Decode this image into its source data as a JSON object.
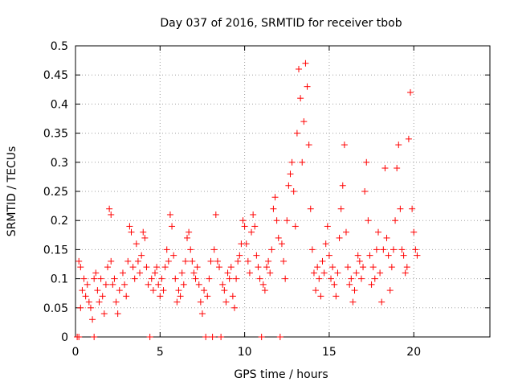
{
  "chart_data": {
    "type": "scatter",
    "title": "Day 037 of 2016, SRMTID for receiver tbob",
    "xlabel": "GPS time / hours",
    "ylabel": "SRMTID / TECUs",
    "xlim": [
      0,
      24.5
    ],
    "ylim": [
      0,
      0.5
    ],
    "x_ticks": [
      0,
      5,
      10,
      15,
      20
    ],
    "y_ticks": [
      0,
      0.05,
      0.1,
      0.15,
      0.2,
      0.25,
      0.3,
      0.35,
      0.4,
      0.45,
      0.5
    ],
    "x_tick_labels": [
      "0",
      "5",
      "10",
      "15",
      "20"
    ],
    "y_tick_labels": [
      "0",
      "0.05",
      "0.1",
      "0.15",
      "0.2",
      "0.25",
      "0.3",
      "0.35",
      "0.4",
      "0.45",
      "0.5"
    ],
    "grid": true,
    "marker": "+",
    "color": "#ff0000",
    "series": [
      {
        "name": "SRMTID",
        "points": [
          [
            0.1,
            0
          ],
          [
            0.2,
            0
          ],
          [
            0.2,
            0.13
          ],
          [
            0.3,
            0.12
          ],
          [
            0.3,
            0.05
          ],
          [
            0.4,
            0.08
          ],
          [
            0.5,
            0.1
          ],
          [
            0.6,
            0.07
          ],
          [
            0.7,
            0.09
          ],
          [
            0.8,
            0.06
          ],
          [
            0.9,
            0.05
          ],
          [
            1.0,
            0.03
          ],
          [
            1.1,
            0
          ],
          [
            1.1,
            0.1
          ],
          [
            1.2,
            0.11
          ],
          [
            1.3,
            0.08
          ],
          [
            1.4,
            0.06
          ],
          [
            1.5,
            0.1
          ],
          [
            1.6,
            0.07
          ],
          [
            1.7,
            0.04
          ],
          [
            1.8,
            0.09
          ],
          [
            1.9,
            0.12
          ],
          [
            2.0,
            0.22
          ],
          [
            2.1,
            0.21
          ],
          [
            2.1,
            0.13
          ],
          [
            2.2,
            0.09
          ],
          [
            2.3,
            0.1
          ],
          [
            2.4,
            0.06
          ],
          [
            2.5,
            0.04
          ],
          [
            2.6,
            0.08
          ],
          [
            2.8,
            0.11
          ],
          [
            2.9,
            0.09
          ],
          [
            3.0,
            0.07
          ],
          [
            3.1,
            0.13
          ],
          [
            3.2,
            0.19
          ],
          [
            3.3,
            0.18
          ],
          [
            3.4,
            0.12
          ],
          [
            3.5,
            0.1
          ],
          [
            3.6,
            0.16
          ],
          [
            3.7,
            0.13
          ],
          [
            3.8,
            0.11
          ],
          [
            3.9,
            0.14
          ],
          [
            4.0,
            0.18
          ],
          [
            4.1,
            0.17
          ],
          [
            4.2,
            0.12
          ],
          [
            4.3,
            0.09
          ],
          [
            4.4,
            0
          ],
          [
            4.5,
            0.1
          ],
          [
            4.6,
            0.08
          ],
          [
            4.7,
            0.11
          ],
          [
            4.8,
            0.12
          ],
          [
            4.9,
            0.09
          ],
          [
            5.0,
            0.07
          ],
          [
            5.1,
            0.1
          ],
          [
            5.2,
            0.08
          ],
          [
            5.3,
            0.12
          ],
          [
            5.4,
            0.15
          ],
          [
            5.5,
            0.13
          ],
          [
            5.6,
            0.21
          ],
          [
            5.7,
            0.19
          ],
          [
            5.8,
            0.14
          ],
          [
            5.9,
            0.1
          ],
          [
            6.0,
            0.06
          ],
          [
            6.1,
            0.08
          ],
          [
            6.2,
            0.07
          ],
          [
            6.3,
            0.11
          ],
          [
            6.4,
            0.09
          ],
          [
            6.5,
            0.13
          ],
          [
            6.6,
            0.17
          ],
          [
            6.7,
            0.18
          ],
          [
            6.8,
            0.15
          ],
          [
            6.9,
            0.13
          ],
          [
            7.0,
            0.11
          ],
          [
            7.1,
            0.1
          ],
          [
            7.2,
            0.12
          ],
          [
            7.3,
            0.09
          ],
          [
            7.4,
            0.06
          ],
          [
            7.5,
            0.04
          ],
          [
            7.6,
            0.08
          ],
          [
            7.7,
            0
          ],
          [
            7.8,
            0.07
          ],
          [
            7.9,
            0.1
          ],
          [
            8.0,
            0.13
          ],
          [
            8.1,
            0
          ],
          [
            8.2,
            0.15
          ],
          [
            8.3,
            0.21
          ],
          [
            8.4,
            0.13
          ],
          [
            8.5,
            0.12
          ],
          [
            8.6,
            0
          ],
          [
            8.7,
            0.09
          ],
          [
            8.8,
            0.08
          ],
          [
            8.9,
            0.06
          ],
          [
            9.0,
            0.11
          ],
          [
            9.1,
            0.1
          ],
          [
            9.2,
            0.12
          ],
          [
            9.3,
            0.07
          ],
          [
            9.4,
            0.05
          ],
          [
            9.5,
            0.1
          ],
          [
            9.6,
            0.13
          ],
          [
            9.7,
            0.14
          ],
          [
            9.8,
            0.16
          ],
          [
            9.9,
            0.2
          ],
          [
            10.0,
            0.19
          ],
          [
            10.1,
            0.16
          ],
          [
            10.2,
            0.13
          ],
          [
            10.3,
            0.11
          ],
          [
            10.4,
            0.18
          ],
          [
            10.5,
            0.21
          ],
          [
            10.6,
            0.19
          ],
          [
            10.7,
            0.14
          ],
          [
            10.8,
            0.12
          ],
          [
            10.9,
            0.1
          ],
          [
            11.0,
            0
          ],
          [
            11.1,
            0.09
          ],
          [
            11.2,
            0.08
          ],
          [
            11.3,
            0.12
          ],
          [
            11.4,
            0.13
          ],
          [
            11.5,
            0.11
          ],
          [
            11.6,
            0.15
          ],
          [
            11.7,
            0.22
          ],
          [
            11.8,
            0.24
          ],
          [
            11.9,
            0.2
          ],
          [
            12.0,
            0.17
          ],
          [
            12.1,
            0
          ],
          [
            12.2,
            0.16
          ],
          [
            12.3,
            0.13
          ],
          [
            12.4,
            0.1
          ],
          [
            12.5,
            0.2
          ],
          [
            12.6,
            0.26
          ],
          [
            12.7,
            0.28
          ],
          [
            12.8,
            0.3
          ],
          [
            12.9,
            0.25
          ],
          [
            13.0,
            0.19
          ],
          [
            13.1,
            0.35
          ],
          [
            13.2,
            0.46
          ],
          [
            13.3,
            0.41
          ],
          [
            13.4,
            0.3
          ],
          [
            13.5,
            0.37
          ],
          [
            13.6,
            0.47
          ],
          [
            13.7,
            0.43
          ],
          [
            13.8,
            0.33
          ],
          [
            13.9,
            0.22
          ],
          [
            14.0,
            0.15
          ],
          [
            14.1,
            0.11
          ],
          [
            14.2,
            0.08
          ],
          [
            14.3,
            0.12
          ],
          [
            14.4,
            0.1
          ],
          [
            14.5,
            0.07
          ],
          [
            14.6,
            0.13
          ],
          [
            14.7,
            0.11
          ],
          [
            14.8,
            0.16
          ],
          [
            14.9,
            0.19
          ],
          [
            15.0,
            0.14
          ],
          [
            15.1,
            0.1
          ],
          [
            15.2,
            0.12
          ],
          [
            15.3,
            0.09
          ],
          [
            15.4,
            0.07
          ],
          [
            15.5,
            0.11
          ],
          [
            15.6,
            0.17
          ],
          [
            15.7,
            0.22
          ],
          [
            15.8,
            0.26
          ],
          [
            15.9,
            0.33
          ],
          [
            16.0,
            0.18
          ],
          [
            16.1,
            0.12
          ],
          [
            16.2,
            0.09
          ],
          [
            16.3,
            0.1
          ],
          [
            16.4,
            0.06
          ],
          [
            16.5,
            0.08
          ],
          [
            16.6,
            0.11
          ],
          [
            16.7,
            0.14
          ],
          [
            16.8,
            0.13
          ],
          [
            16.9,
            0.1
          ],
          [
            17.0,
            0.12
          ],
          [
            17.1,
            0.25
          ],
          [
            17.2,
            0.3
          ],
          [
            17.3,
            0.2
          ],
          [
            17.4,
            0.14
          ],
          [
            17.5,
            0.09
          ],
          [
            17.6,
            0.12
          ],
          [
            17.7,
            0.1
          ],
          [
            17.8,
            0.15
          ],
          [
            17.9,
            0.18
          ],
          [
            18.0,
            0.11
          ],
          [
            18.1,
            0.06
          ],
          [
            18.2,
            0.15
          ],
          [
            18.3,
            0.29
          ],
          [
            18.4,
            0.17
          ],
          [
            18.5,
            0.14
          ],
          [
            18.6,
            0.08
          ],
          [
            18.7,
            0.12
          ],
          [
            18.8,
            0.15
          ],
          [
            18.9,
            0.2
          ],
          [
            19.0,
            0.29
          ],
          [
            19.1,
            0.33
          ],
          [
            19.2,
            0.22
          ],
          [
            19.3,
            0.15
          ],
          [
            19.4,
            0.14
          ],
          [
            19.5,
            0.11
          ],
          [
            19.6,
            0.12
          ],
          [
            19.7,
            0.34
          ],
          [
            19.8,
            0.42
          ],
          [
            19.9,
            0.22
          ],
          [
            20.0,
            0.18
          ],
          [
            20.1,
            0.15
          ],
          [
            20.2,
            0.14
          ]
        ]
      }
    ]
  }
}
